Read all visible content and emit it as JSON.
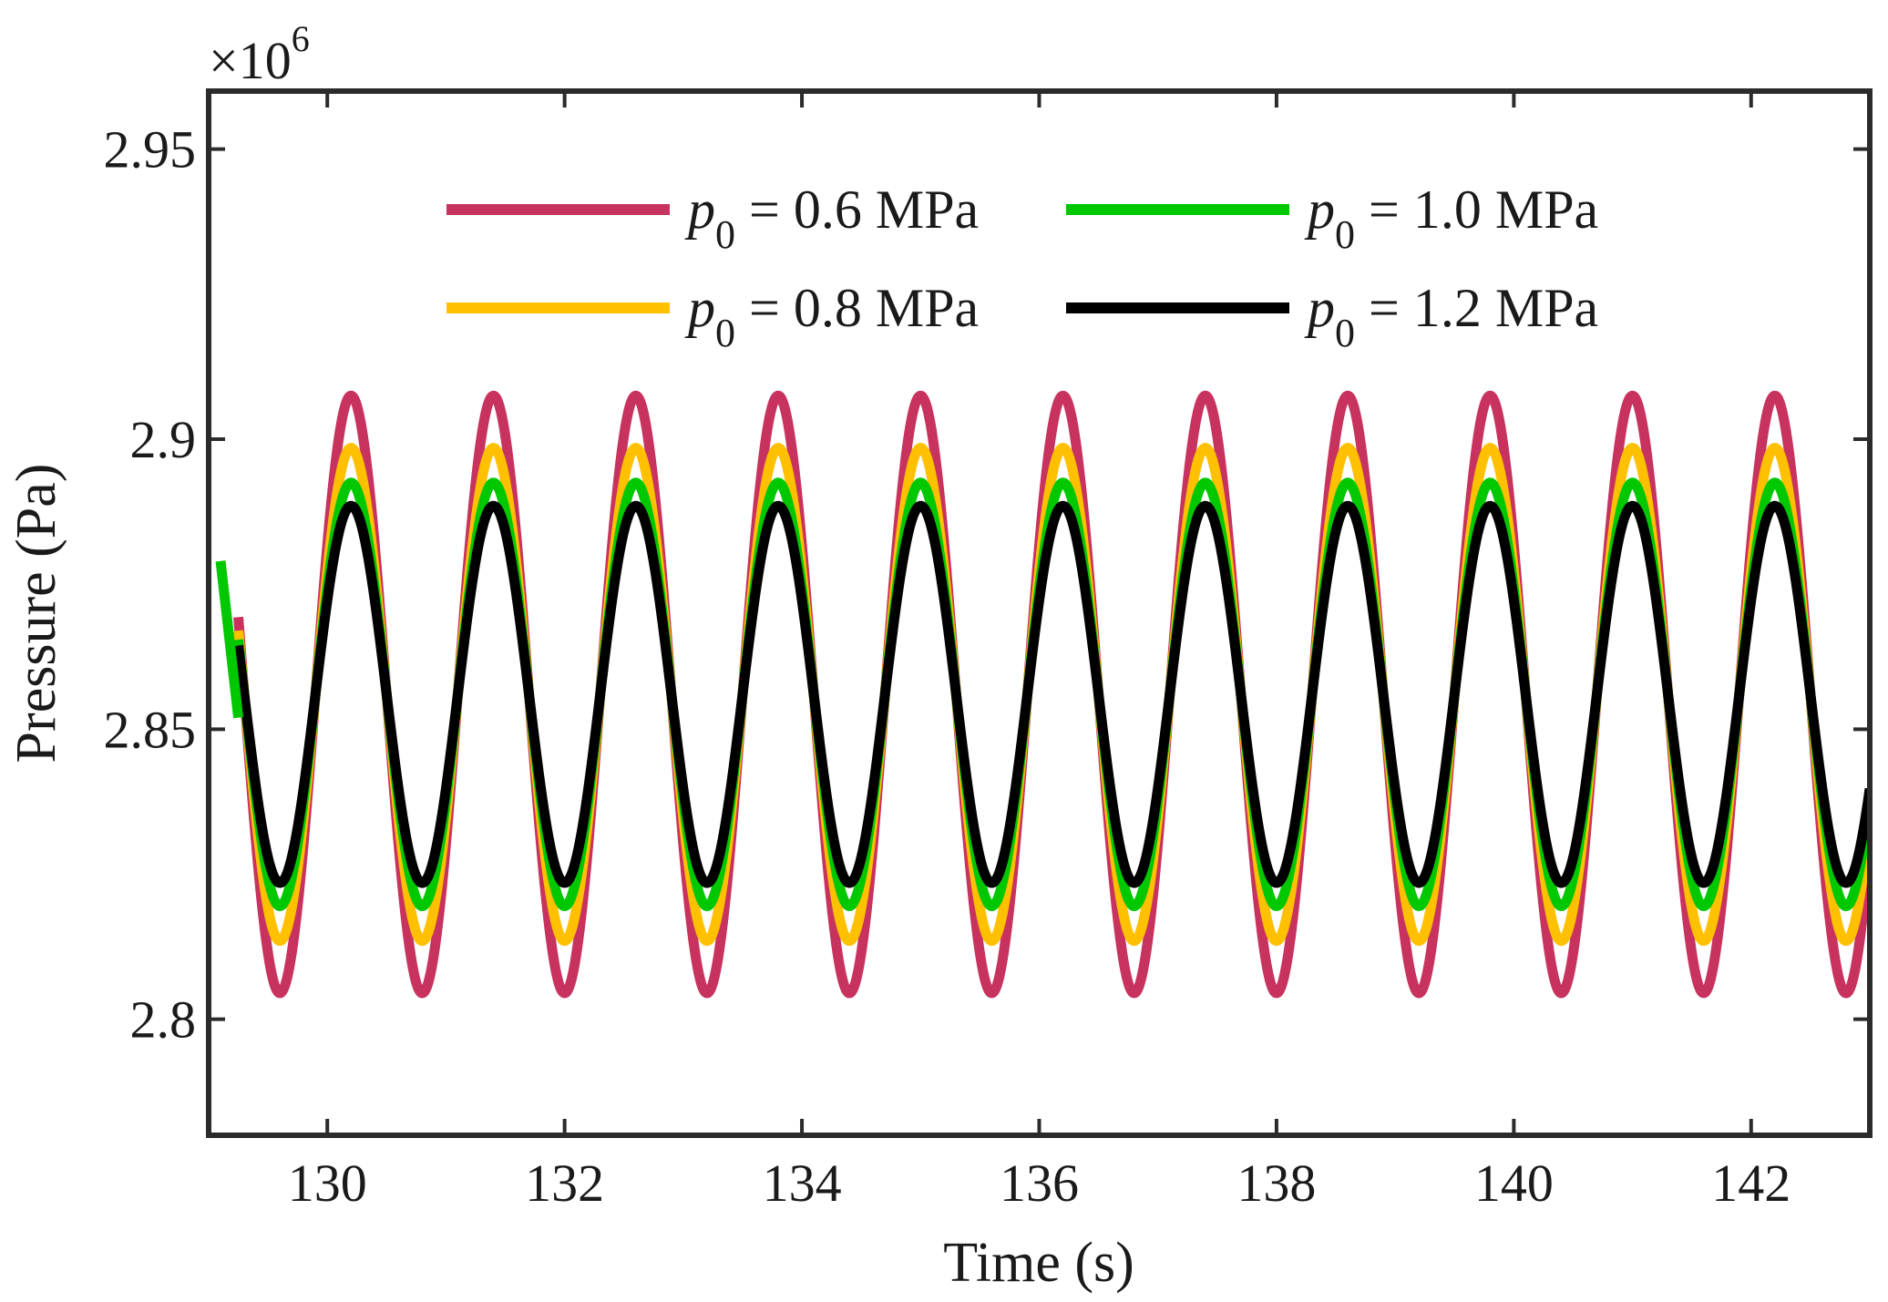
{
  "chart_data": {
    "type": "line",
    "xlabel": "Time (s)",
    "ylabel": "Pressure (Pa)",
    "y_multiplier": "×10",
    "y_multiplier_exp": "6",
    "xlim": [
      129.0,
      143.0
    ],
    "ylim": [
      2.78,
      2.96
    ],
    "xticks": [
      130,
      132,
      134,
      136,
      138,
      140,
      142
    ],
    "xtick_labels": [
      "130",
      "132",
      "134",
      "136",
      "138",
      "140",
      "142"
    ],
    "yticks": [
      2.8,
      2.85,
      2.9,
      2.95
    ],
    "ytick_labels": [
      "2.8",
      "2.85",
      "2.9",
      "2.95"
    ],
    "grid": false,
    "legend_position": "top",
    "period": 1.2,
    "first_peak_time": 130.2,
    "series": [
      {
        "name": "p0 = 0.6 MPa",
        "legend_var": "p",
        "legend_sub": "0",
        "legend_rest": " = 0.6 MPa",
        "color": "#c8325e",
        "mean": 2.856,
        "amplitude": 0.0515
      },
      {
        "name": "p0 = 0.8 MPa",
        "legend_var": "p",
        "legend_sub": "0",
        "legend_rest": " = 0.8 MPa",
        "color": "#ffc000",
        "mean": 2.856,
        "amplitude": 0.0425
      },
      {
        "name": "p0 = 1.0 MPa",
        "legend_var": "p",
        "legend_sub": "0",
        "legend_rest": " = 1.0 MPa",
        "color": "#00c800",
        "mean": 2.856,
        "amplitude": 0.0365
      },
      {
        "name": "p0 = 1.2 MPa",
        "legend_var": "p",
        "legend_sub": "0",
        "legend_rest": " = 1.2 MPa",
        "color": "#000000",
        "mean": 2.856,
        "amplitude": 0.0325
      }
    ],
    "start_segment": {
      "series": "p0 = 1.0 MPa",
      "x": [
        129.1,
        129.25
      ],
      "y": [
        2.879,
        2.852
      ]
    }
  }
}
